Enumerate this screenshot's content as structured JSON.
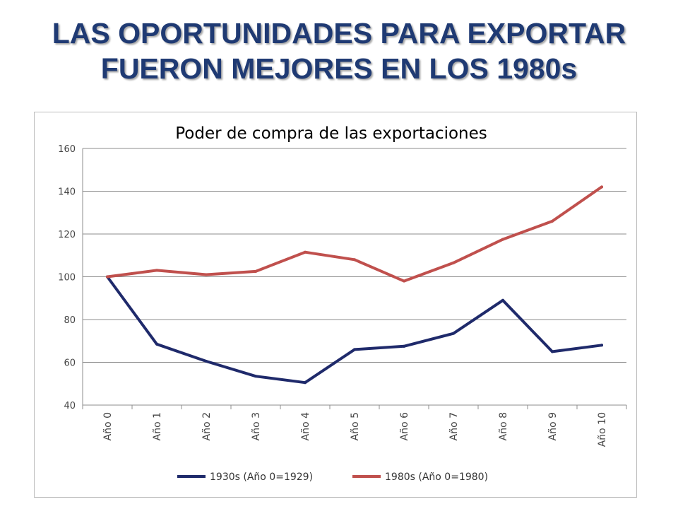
{
  "slide": {
    "title_line1": "LAS OPORTUNIDADES PARA EXPORTAR",
    "title_line2": "FUERON MEJORES EN LOS 1980s"
  },
  "chart_data": {
    "type": "line",
    "title": "Poder de compra de las exportaciones",
    "xlabel": "",
    "ylabel": "",
    "categories": [
      "Año 0",
      "Año 1",
      "Año 2",
      "Año 3",
      "Año 4",
      "Año 5",
      "Año 6",
      "Año 7",
      "Año 8",
      "Año 9",
      "Año 10"
    ],
    "ylim": [
      40,
      160
    ],
    "yticks": [
      40,
      60,
      80,
      100,
      120,
      140,
      160
    ],
    "grid": true,
    "legend_position": "bottom",
    "series": [
      {
        "name": "1930s (Año 0=1929)",
        "color": "#1f2a6b",
        "values": [
          100,
          68.5,
          60.5,
          53.5,
          50.5,
          66,
          67.5,
          73.5,
          89,
          65,
          68
        ]
      },
      {
        "name": "1980s (Año 0=1980)",
        "color": "#c0504d",
        "values": [
          100,
          103,
          101,
          102.5,
          111.5,
          108,
          98,
          106.5,
          117.5,
          126,
          142
        ]
      }
    ]
  }
}
